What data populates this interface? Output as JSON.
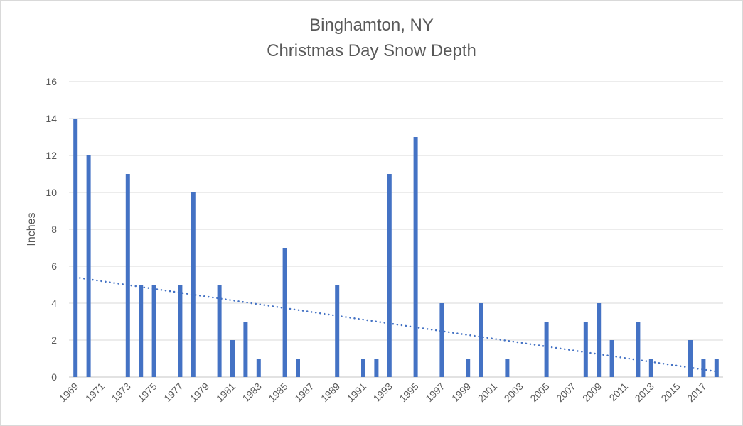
{
  "chart_data": {
    "type": "bar",
    "title": "Binghamton, NY",
    "subtitle": "Christmas Day Snow Depth",
    "xlabel": "",
    "ylabel": "Inches",
    "ylim": [
      0,
      16
    ],
    "yticks": [
      0,
      2,
      4,
      6,
      8,
      10,
      12,
      14,
      16
    ],
    "grid": true,
    "categories": [
      1969,
      1970,
      1971,
      1972,
      1973,
      1974,
      1975,
      1976,
      1977,
      1978,
      1979,
      1980,
      1981,
      1982,
      1983,
      1984,
      1985,
      1986,
      1987,
      1988,
      1989,
      1990,
      1991,
      1992,
      1993,
      1994,
      1995,
      1996,
      1997,
      1998,
      1999,
      2000,
      2001,
      2002,
      2003,
      2004,
      2005,
      2006,
      2007,
      2008,
      2009,
      2010,
      2011,
      2012,
      2013,
      2014,
      2015,
      2016,
      2017,
      2018
    ],
    "xtick_labels": [
      "1969",
      "1971",
      "1973",
      "1975",
      "1977",
      "1979",
      "1981",
      "1983",
      "1985",
      "1987",
      "1989",
      "1991",
      "1993",
      "1995",
      "1997",
      "1999",
      "2001",
      "2003",
      "2005",
      "2007",
      "2009",
      "2011",
      "2013",
      "2015",
      "2017"
    ],
    "values": [
      14,
      12,
      0,
      0,
      11,
      5,
      5,
      0,
      5,
      10,
      0,
      5,
      2,
      3,
      1,
      0,
      7,
      1,
      0,
      0,
      5,
      0,
      1,
      1,
      11,
      0,
      13,
      0,
      4,
      0,
      1,
      4,
      0,
      1,
      0,
      0,
      3,
      0,
      0,
      3,
      4,
      2,
      0,
      3,
      1,
      0,
      0,
      2,
      1,
      1
    ],
    "trendline": {
      "type": "linear",
      "style": "dotted",
      "start_value": 5.4,
      "end_value": 0.3
    },
    "colors": {
      "bar": "#4472C4",
      "grid": "#d9d9d9",
      "text": "#595959"
    }
  }
}
